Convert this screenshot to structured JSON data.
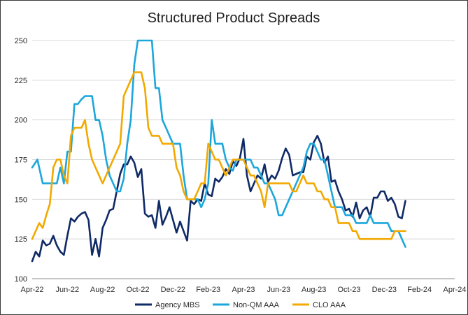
{
  "chart_data": {
    "type": "line",
    "title": "Structured Product Spreads",
    "xlabel": "",
    "ylabel": "",
    "ylim": [
      100,
      250
    ],
    "yticks": [
      100,
      125,
      150,
      175,
      200,
      225,
      250
    ],
    "xlim": [
      0,
      24
    ],
    "xticks": [
      {
        "x": 0,
        "label": "Apr-22"
      },
      {
        "x": 2,
        "label": "Jun-22"
      },
      {
        "x": 4,
        "label": "Aug-22"
      },
      {
        "x": 6,
        "label": "Oct-22"
      },
      {
        "x": 8,
        "label": "Dec-22"
      },
      {
        "x": 10,
        "label": "Feb-23"
      },
      {
        "x": 12,
        "label": "Apr-23"
      },
      {
        "x": 14,
        "label": "Jun-23"
      },
      {
        "x": 16,
        "label": "Aug-23"
      },
      {
        "x": 18,
        "label": "Oct-23"
      },
      {
        "x": 20,
        "label": "Dec-23"
      },
      {
        "x": 22,
        "label": "Feb-24"
      },
      {
        "x": 24,
        "label": "Apr-24"
      }
    ],
    "grid": "horizontal",
    "legend_position": "bottom",
    "series": [
      {
        "name": "Agency MBS",
        "color": "#0f2a66",
        "points": [
          [
            0.0,
            111
          ],
          [
            0.2,
            117
          ],
          [
            0.4,
            114
          ],
          [
            0.6,
            124
          ],
          [
            0.8,
            121
          ],
          [
            1.0,
            122
          ],
          [
            1.2,
            127
          ],
          [
            1.4,
            121
          ],
          [
            1.6,
            117
          ],
          [
            1.8,
            115
          ],
          [
            2.0,
            127
          ],
          [
            2.2,
            138
          ],
          [
            2.4,
            136
          ],
          [
            2.6,
            139
          ],
          [
            2.8,
            141
          ],
          [
            3.0,
            142
          ],
          [
            3.2,
            137
          ],
          [
            3.4,
            115
          ],
          [
            3.6,
            125
          ],
          [
            3.8,
            114
          ],
          [
            4.0,
            132
          ],
          [
            4.2,
            137
          ],
          [
            4.4,
            143
          ],
          [
            4.6,
            144
          ],
          [
            4.8,
            155
          ],
          [
            5.0,
            166
          ],
          [
            5.2,
            172
          ],
          [
            5.4,
            172
          ],
          [
            5.6,
            177
          ],
          [
            5.8,
            173
          ],
          [
            6.0,
            164
          ],
          [
            6.2,
            169
          ],
          [
            6.4,
            141
          ],
          [
            6.6,
            139
          ],
          [
            6.8,
            140
          ],
          [
            7.0,
            132
          ],
          [
            7.2,
            149
          ],
          [
            7.4,
            134
          ],
          [
            7.6,
            139
          ],
          [
            7.8,
            145
          ],
          [
            8.0,
            137
          ],
          [
            8.2,
            129
          ],
          [
            8.4,
            136
          ],
          [
            8.6,
            130
          ],
          [
            8.8,
            124
          ],
          [
            9.0,
            149
          ],
          [
            9.2,
            147
          ],
          [
            9.4,
            150
          ],
          [
            9.6,
            149
          ],
          [
            9.8,
            160
          ],
          [
            10.0,
            153
          ],
          [
            10.2,
            152
          ],
          [
            10.4,
            163
          ],
          [
            10.6,
            161
          ],
          [
            10.8,
            164
          ],
          [
            11.0,
            169
          ],
          [
            11.2,
            166
          ],
          [
            11.4,
            174
          ],
          [
            11.6,
            171
          ],
          [
            11.8,
            176
          ],
          [
            12.0,
            188
          ],
          [
            12.2,
            165
          ],
          [
            12.4,
            155
          ],
          [
            12.6,
            160
          ],
          [
            12.8,
            165
          ],
          [
            13.0,
            163
          ],
          [
            13.2,
            172
          ],
          [
            13.4,
            161
          ],
          [
            13.6,
            165
          ],
          [
            13.8,
            163
          ],
          [
            14.0,
            168
          ],
          [
            14.2,
            176
          ],
          [
            14.4,
            182
          ],
          [
            14.6,
            178
          ],
          [
            14.8,
            165
          ],
          [
            15.0,
            166
          ],
          [
            15.2,
            167
          ],
          [
            15.4,
            167
          ],
          [
            15.6,
            177
          ],
          [
            15.8,
            175
          ],
          [
            16.0,
            186
          ],
          [
            16.2,
            190
          ],
          [
            16.4,
            185
          ],
          [
            16.6,
            173
          ],
          [
            16.8,
            177
          ],
          [
            17.0,
            161
          ],
          [
            17.2,
            162
          ],
          [
            17.4,
            155
          ],
          [
            17.6,
            150
          ],
          [
            17.8,
            143
          ],
          [
            18.0,
            144
          ],
          [
            18.2,
            139
          ],
          [
            18.4,
            148
          ],
          [
            18.6,
            138
          ],
          [
            18.8,
            143
          ],
          [
            19.0,
            145
          ],
          [
            19.2,
            139
          ],
          [
            19.4,
            151
          ],
          [
            19.6,
            151
          ],
          [
            19.8,
            155
          ],
          [
            20.0,
            155
          ],
          [
            20.2,
            149
          ],
          [
            20.4,
            151
          ],
          [
            20.6,
            147
          ],
          [
            20.8,
            139
          ],
          [
            21.0,
            138
          ],
          [
            21.2,
            149
          ]
        ]
      },
      {
        "name": "Non-QM AAA",
        "color": "#1ca7dc",
        "points": [
          [
            0.0,
            170
          ],
          [
            0.3,
            175
          ],
          [
            0.6,
            160
          ],
          [
            1.0,
            160
          ],
          [
            1.4,
            160
          ],
          [
            1.6,
            170
          ],
          [
            1.8,
            160
          ],
          [
            2.0,
            180
          ],
          [
            2.2,
            180
          ],
          [
            2.4,
            210
          ],
          [
            2.6,
            210
          ],
          [
            2.8,
            213
          ],
          [
            3.0,
            215
          ],
          [
            3.4,
            215
          ],
          [
            3.6,
            200
          ],
          [
            3.8,
            200
          ],
          [
            4.0,
            190
          ],
          [
            4.2,
            175
          ],
          [
            4.4,
            165
          ],
          [
            4.6,
            160
          ],
          [
            4.8,
            155
          ],
          [
            5.0,
            155
          ],
          [
            5.2,
            163
          ],
          [
            5.4,
            185
          ],
          [
            5.6,
            200
          ],
          [
            5.8,
            235
          ],
          [
            6.0,
            250
          ],
          [
            6.6,
            250
          ],
          [
            6.8,
            250
          ],
          [
            7.0,
            220
          ],
          [
            7.2,
            220
          ],
          [
            7.4,
            200
          ],
          [
            7.6,
            195
          ],
          [
            7.8,
            190
          ],
          [
            8.0,
            185
          ],
          [
            8.2,
            185
          ],
          [
            8.4,
            185
          ],
          [
            8.6,
            165
          ],
          [
            8.8,
            150
          ],
          [
            9.0,
            150
          ],
          [
            9.4,
            150
          ],
          [
            9.6,
            145
          ],
          [
            9.8,
            150
          ],
          [
            10.0,
            160
          ],
          [
            10.2,
            200
          ],
          [
            10.4,
            185
          ],
          [
            10.8,
            185
          ],
          [
            11.0,
            175
          ],
          [
            11.2,
            170
          ],
          [
            11.4,
            168
          ],
          [
            11.6,
            175
          ],
          [
            11.8,
            175
          ],
          [
            12.0,
            175
          ],
          [
            12.2,
            175
          ],
          [
            12.4,
            175
          ],
          [
            12.6,
            170
          ],
          [
            12.8,
            170
          ],
          [
            13.0,
            165
          ],
          [
            13.2,
            160
          ],
          [
            13.4,
            160
          ],
          [
            13.6,
            155
          ],
          [
            13.8,
            150
          ],
          [
            14.0,
            140
          ],
          [
            14.2,
            140
          ],
          [
            14.4,
            145
          ],
          [
            14.6,
            150
          ],
          [
            14.8,
            155
          ],
          [
            15.0,
            160
          ],
          [
            15.2,
            165
          ],
          [
            15.4,
            170
          ],
          [
            15.6,
            180
          ],
          [
            15.8,
            185
          ],
          [
            16.0,
            185
          ],
          [
            16.2,
            180
          ],
          [
            16.4,
            175
          ],
          [
            16.6,
            175
          ],
          [
            16.8,
            165
          ],
          [
            17.0,
            155
          ],
          [
            17.2,
            145
          ],
          [
            17.4,
            145
          ],
          [
            17.6,
            145
          ],
          [
            17.8,
            140
          ],
          [
            18.0,
            140
          ],
          [
            18.2,
            140
          ],
          [
            18.4,
            135
          ],
          [
            18.6,
            135
          ],
          [
            18.8,
            135
          ],
          [
            19.0,
            135
          ],
          [
            19.2,
            140
          ],
          [
            19.4,
            135
          ],
          [
            19.6,
            135
          ],
          [
            19.8,
            135
          ],
          [
            20.0,
            135
          ],
          [
            20.2,
            135
          ],
          [
            20.4,
            130
          ],
          [
            20.6,
            130
          ],
          [
            20.8,
            130
          ],
          [
            21.0,
            125
          ],
          [
            21.2,
            120
          ]
        ]
      },
      {
        "name": "CLO AAA",
        "color": "#f2a900",
        "points": [
          [
            0.0,
            125
          ],
          [
            0.2,
            130
          ],
          [
            0.4,
            135
          ],
          [
            0.6,
            132
          ],
          [
            0.8,
            140
          ],
          [
            1.0,
            147
          ],
          [
            1.2,
            170
          ],
          [
            1.4,
            175
          ],
          [
            1.6,
            175
          ],
          [
            1.8,
            165
          ],
          [
            2.0,
            160
          ],
          [
            2.2,
            190
          ],
          [
            2.4,
            195
          ],
          [
            2.6,
            195
          ],
          [
            2.8,
            195
          ],
          [
            3.0,
            200
          ],
          [
            3.2,
            185
          ],
          [
            3.4,
            175
          ],
          [
            3.6,
            170
          ],
          [
            3.8,
            165
          ],
          [
            4.0,
            160
          ],
          [
            4.2,
            165
          ],
          [
            4.4,
            170
          ],
          [
            4.6,
            175
          ],
          [
            4.8,
            180
          ],
          [
            5.0,
            185
          ],
          [
            5.2,
            215
          ],
          [
            5.4,
            220
          ],
          [
            5.6,
            225
          ],
          [
            5.8,
            230
          ],
          [
            6.0,
            230
          ],
          [
            6.2,
            230
          ],
          [
            6.4,
            220
          ],
          [
            6.6,
            195
          ],
          [
            6.8,
            190
          ],
          [
            7.0,
            190
          ],
          [
            7.2,
            190
          ],
          [
            7.4,
            185
          ],
          [
            7.6,
            185
          ],
          [
            7.8,
            185
          ],
          [
            8.0,
            185
          ],
          [
            8.2,
            170
          ],
          [
            8.4,
            165
          ],
          [
            8.6,
            155
          ],
          [
            8.8,
            150
          ],
          [
            9.0,
            150
          ],
          [
            9.2,
            150
          ],
          [
            9.4,
            155
          ],
          [
            9.6,
            160
          ],
          [
            9.8,
            160
          ],
          [
            10.0,
            185
          ],
          [
            10.2,
            180
          ],
          [
            10.4,
            175
          ],
          [
            10.6,
            175
          ],
          [
            10.8,
            170
          ],
          [
            11.0,
            165
          ],
          [
            11.2,
            170
          ],
          [
            11.4,
            175
          ],
          [
            11.6,
            175
          ],
          [
            11.8,
            175
          ],
          [
            12.0,
            175
          ],
          [
            12.2,
            170
          ],
          [
            12.4,
            165
          ],
          [
            12.6,
            165
          ],
          [
            12.8,
            160
          ],
          [
            13.0,
            155
          ],
          [
            13.2,
            145
          ],
          [
            13.4,
            160
          ],
          [
            13.6,
            160
          ],
          [
            13.8,
            160
          ],
          [
            14.0,
            160
          ],
          [
            14.2,
            160
          ],
          [
            14.4,
            160
          ],
          [
            14.6,
            160
          ],
          [
            14.8,
            155
          ],
          [
            15.0,
            155
          ],
          [
            15.2,
            160
          ],
          [
            15.4,
            165
          ],
          [
            15.6,
            160
          ],
          [
            15.8,
            160
          ],
          [
            16.0,
            160
          ],
          [
            16.2,
            155
          ],
          [
            16.4,
            155
          ],
          [
            16.6,
            150
          ],
          [
            16.8,
            150
          ],
          [
            17.0,
            145
          ],
          [
            17.2,
            145
          ],
          [
            17.4,
            135
          ],
          [
            17.6,
            135
          ],
          [
            17.8,
            135
          ],
          [
            18.0,
            135
          ],
          [
            18.2,
            130
          ],
          [
            18.4,
            130
          ],
          [
            18.6,
            125
          ],
          [
            18.8,
            125
          ],
          [
            19.0,
            125
          ],
          [
            19.4,
            125
          ],
          [
            19.8,
            125
          ],
          [
            20.0,
            125
          ],
          [
            20.2,
            125
          ],
          [
            20.4,
            125
          ],
          [
            20.6,
            130
          ],
          [
            20.8,
            130
          ],
          [
            21.0,
            130
          ],
          [
            21.2,
            130
          ]
        ]
      }
    ]
  }
}
